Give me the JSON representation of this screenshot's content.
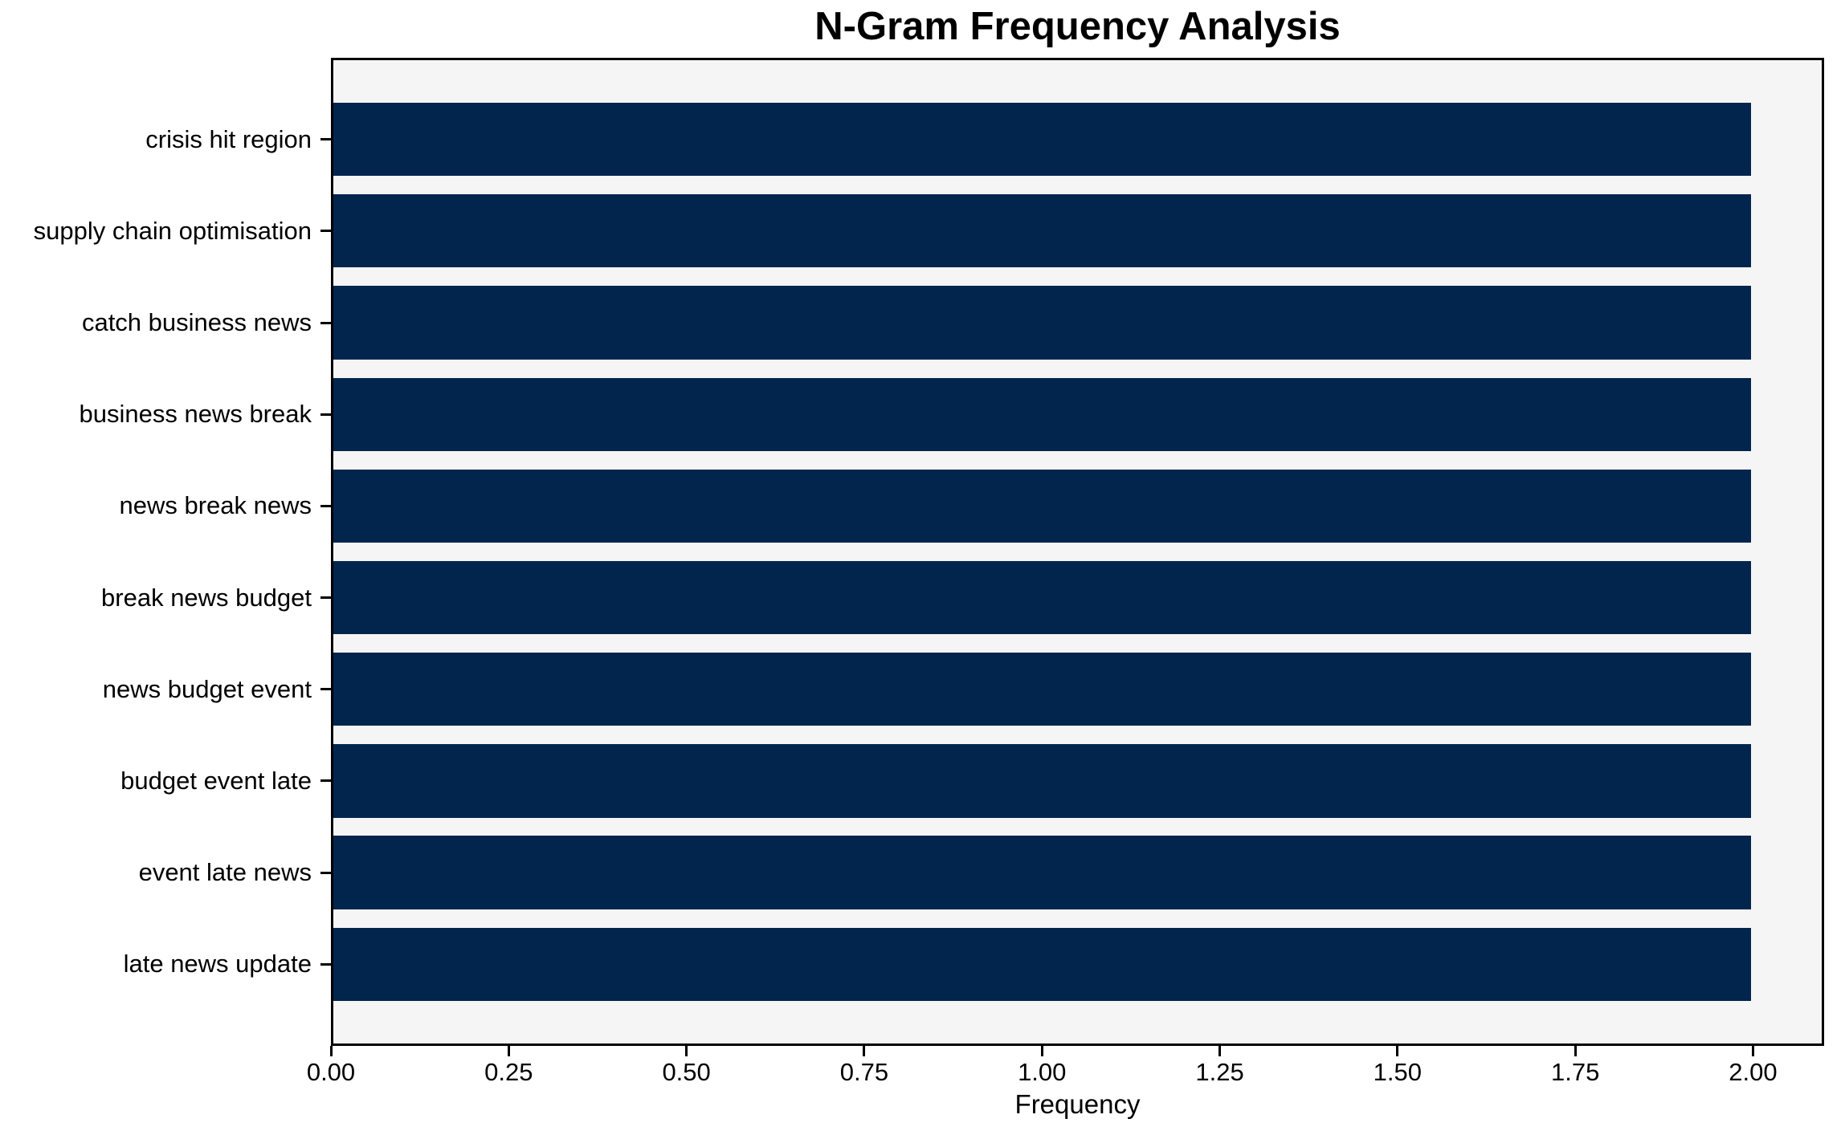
{
  "chart_data": {
    "type": "bar",
    "orientation": "horizontal",
    "title": "N-Gram Frequency Analysis",
    "xlabel": "Frequency",
    "categories": [
      "crisis hit region",
      "supply chain optimisation",
      "catch business news",
      "business news break",
      "news break news",
      "break news budget",
      "news budget event",
      "budget event late",
      "event late news",
      "late news update"
    ],
    "values": [
      2,
      2,
      2,
      2,
      2,
      2,
      2,
      2,
      2,
      2
    ],
    "xlim": [
      0,
      2.1
    ],
    "xtick_values": [
      0,
      0.25,
      0.5,
      0.75,
      1.0,
      1.25,
      1.5,
      1.75,
      2.0
    ],
    "xtick_labels": [
      "0.00",
      "0.25",
      "0.50",
      "0.75",
      "1.00",
      "1.25",
      "1.50",
      "1.75",
      "2.00"
    ],
    "bar_color": "#02254e",
    "plot_background": "#f5f5f6",
    "axis_color": "#000000",
    "grid": false,
    "legend": false
  }
}
